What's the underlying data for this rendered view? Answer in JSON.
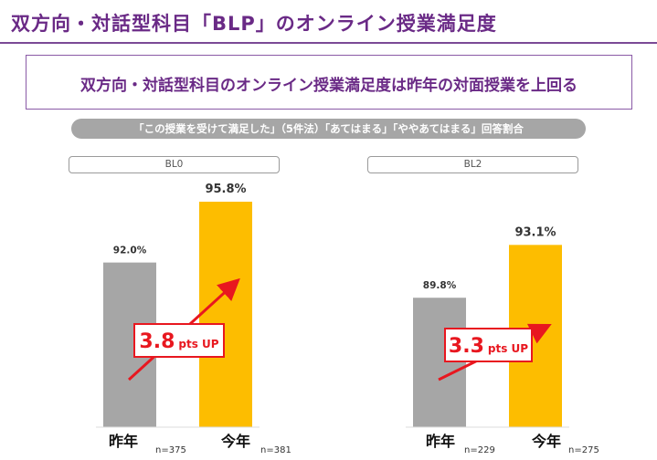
{
  "title": "双方向・対話型科目「BLP」のオンライン授業満足度",
  "headline": "双方向・対話型科目のオンライン授業満足度は昨年の対面授業を上回る",
  "question": "「この授業を受けて満足した」（5件法）「あてはまる」「ややあてはまる」回答割合",
  "colors": {
    "last_year": "#a6a6a6",
    "this_year": "#fdbd00",
    "accent": "#e8171f",
    "title": "#6a2a86"
  },
  "chart_data": [
    {
      "type": "bar",
      "panel": "BL0",
      "categories": [
        "昨年",
        "今年"
      ],
      "values": [
        92.0,
        95.8
      ],
      "value_labels": [
        "92.0%",
        "95.8%"
      ],
      "n_labels": [
        "n=375",
        "n=381"
      ],
      "delta_value": "3.8",
      "delta_unit": "pts UP",
      "ylim": [
        0,
        100
      ]
    },
    {
      "type": "bar",
      "panel": "BL2",
      "categories": [
        "昨年",
        "今年"
      ],
      "values": [
        89.8,
        93.1
      ],
      "value_labels": [
        "89.8%",
        "93.1%"
      ],
      "n_labels": [
        "n=229",
        "n=275"
      ],
      "delta_value": "3.3",
      "delta_unit": "pts UP",
      "ylim": [
        0,
        100
      ]
    }
  ]
}
